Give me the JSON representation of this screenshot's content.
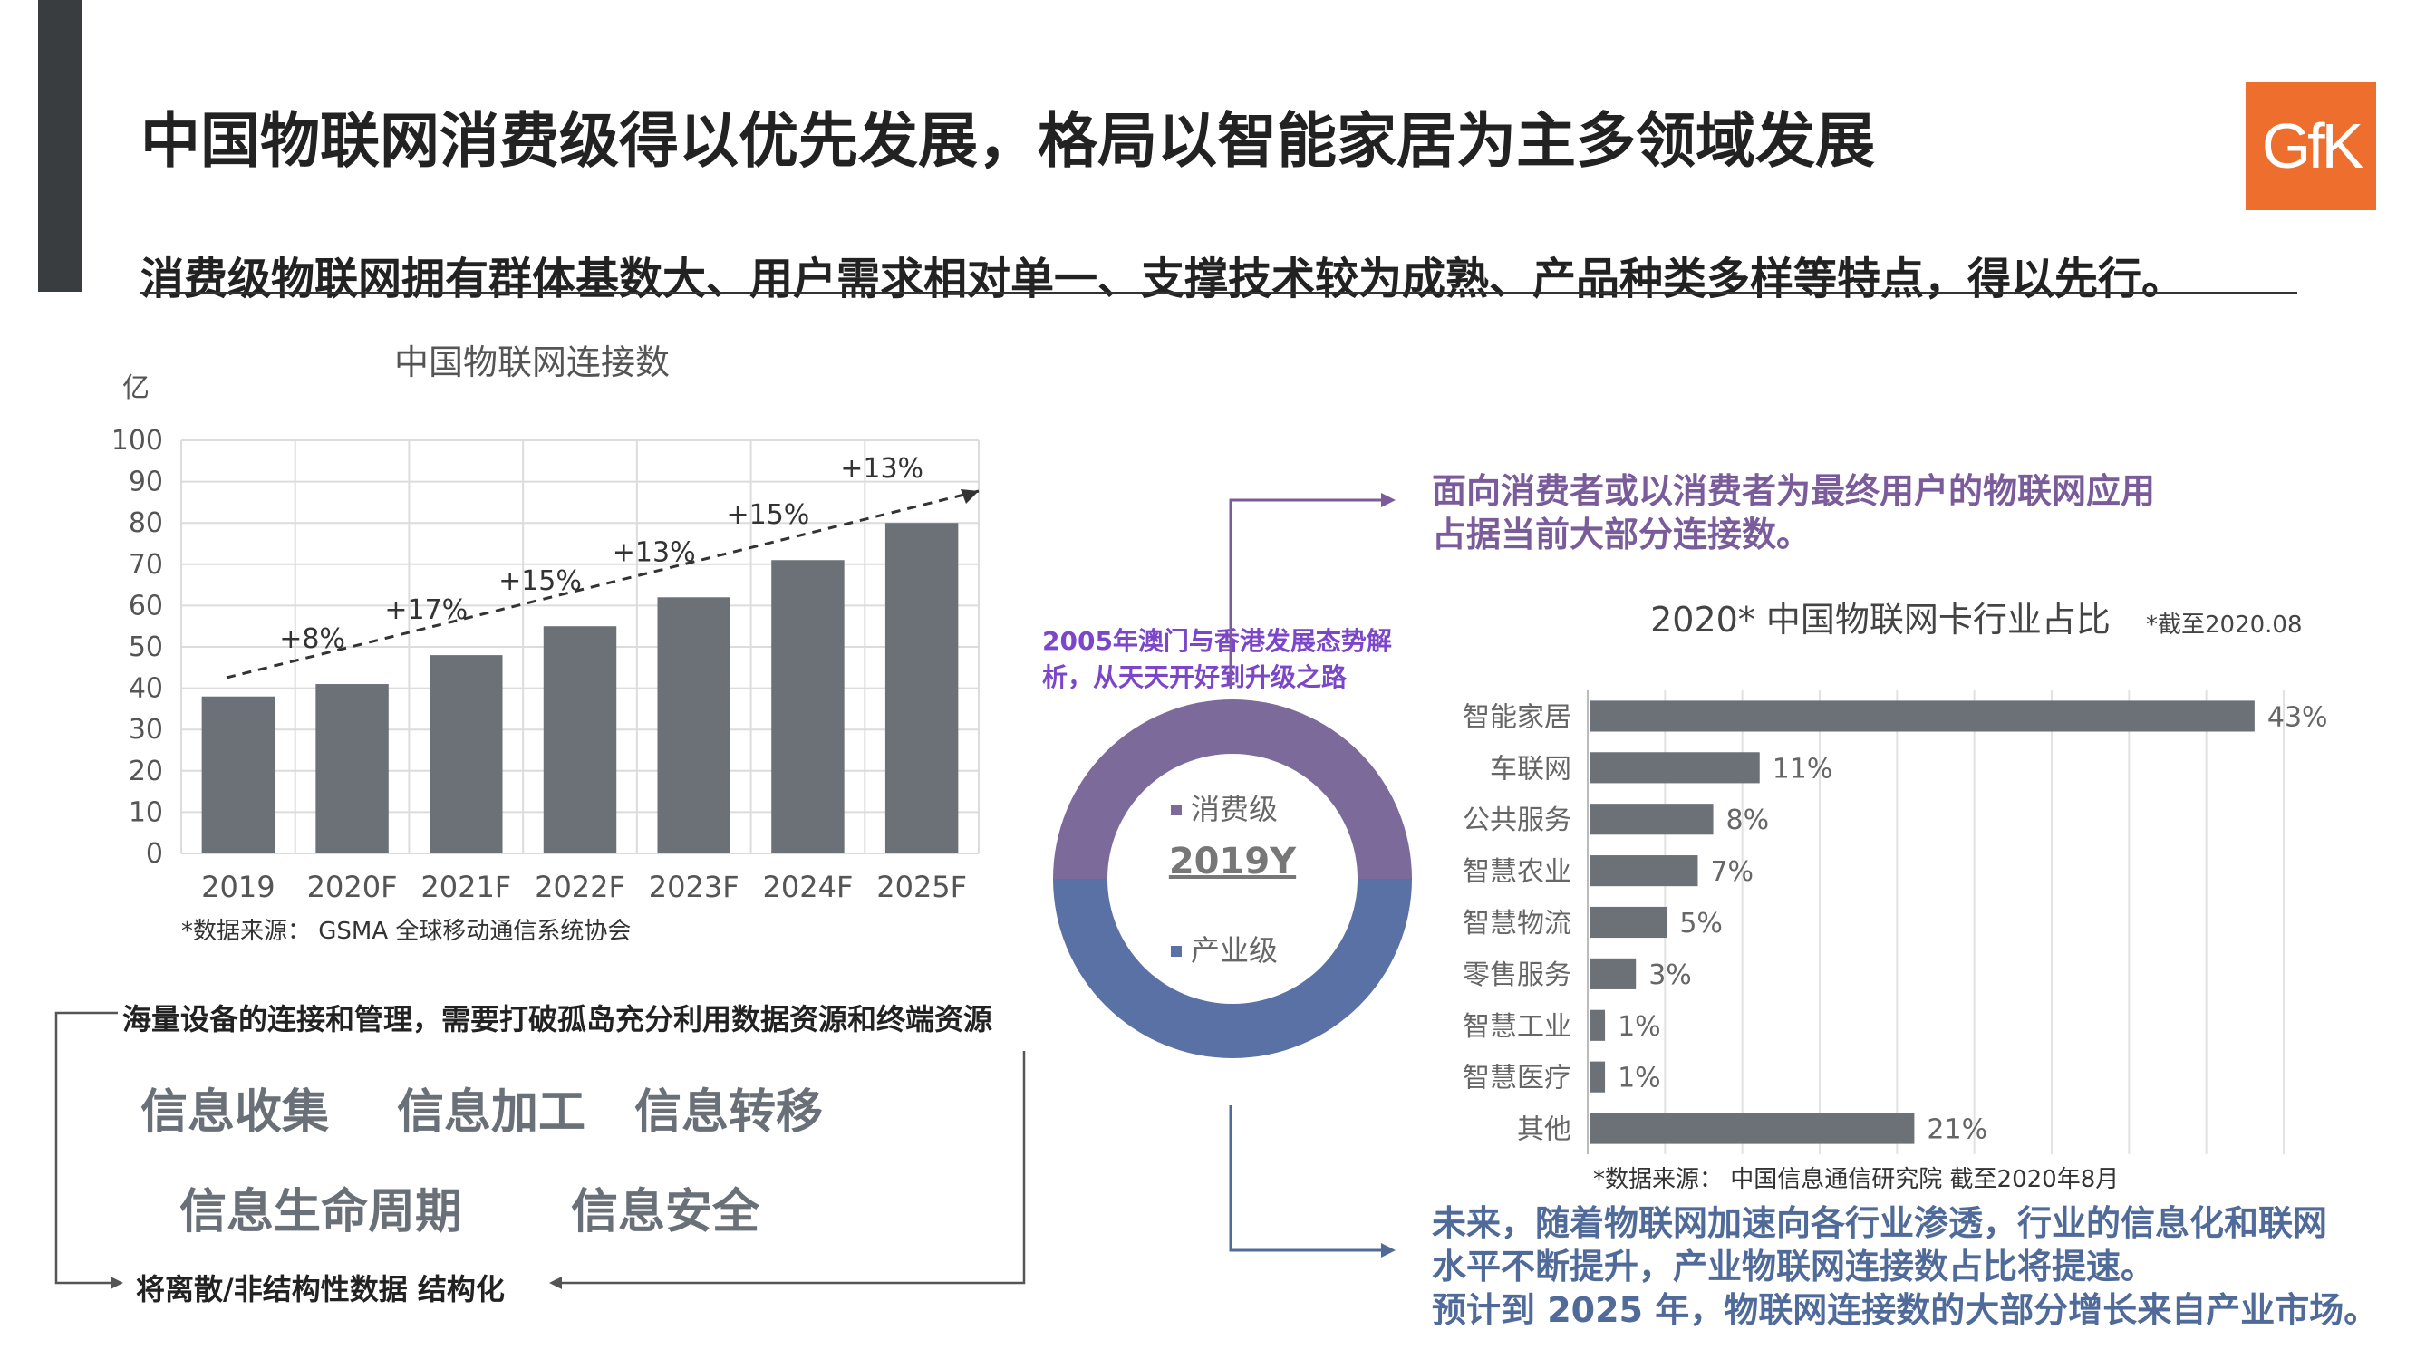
{
  "title": "中国物联网消费级得以优先发展，格局以智能家居为主多领域发展",
  "subtitle": "消费级物联网拥有群体基数大、用户需求相对单一、支撑技术较为成熟、产品种类多样等特点，得以先行。",
  "logo_text": "GfK",
  "colors": {
    "accent_bar": "#3a3d40",
    "logo_bg": "#ee6f2d",
    "bar": "#6b7176",
    "purple": "#7b5c9a",
    "blue": "#506b99"
  },
  "left_chart_source": "*数据来源： GSMA 全球移动通信系统协会",
  "right_chart_source": "*数据来源： 中国信息通信研究院 截至2020年8月",
  "donut": {
    "center_label": "2019Y",
    "legend": [
      "消费级",
      "产业级"
    ]
  },
  "overlay_caption": "2005年澳门与香港发展态势解析，从天天开好到升级之路",
  "top_right_text": [
    "面向消费者或以消费者为最终用户的物联网应用",
    "占据当前大部分连接数。"
  ],
  "bottom_right_text": [
    "未来，随着物联网加速向各行业渗透，行业的信息化和联网",
    "水平不断提升，产业物联网连接数占比将提速。",
    "预计到 2025 年，物联网连接数的大部分增长来自产业市场。"
  ],
  "bottom_left": {
    "header": "海量设备的连接和管理，需要打破孤岛充分利用数据资源和终端资源",
    "row1": [
      "信息收集",
      "信息加工",
      "信息转移"
    ],
    "row2": [
      "信息生命周期",
      "信息安全"
    ],
    "footer": "将离散/非结构性数据 结构化"
  },
  "chart_data": [
    {
      "type": "bar",
      "title": "中国物联网连接数",
      "ylabel": "亿",
      "categories": [
        "2019",
        "2020F",
        "2021F",
        "2022F",
        "2023F",
        "2024F",
        "2025F"
      ],
      "values": [
        38,
        41,
        48,
        55,
        62,
        71,
        80
      ],
      "growth_labels": [
        "+8%",
        "+17%",
        "+15%",
        "+13%",
        "+15%",
        "+13%"
      ],
      "ylim": [
        0,
        100
      ],
      "yticks": [
        0,
        10,
        20,
        30,
        40,
        50,
        60,
        70,
        80,
        90,
        100
      ],
      "grid": true
    },
    {
      "type": "bar",
      "orientation": "horizontal",
      "title": "2020* 中国物联网卡行业占比",
      "note": "*截至2020.08",
      "categories": [
        "智能家居",
        "车联网",
        "公共服务",
        "智慧农业",
        "智慧物流",
        "零售服务",
        "智慧工业",
        "智慧医疗",
        "其他"
      ],
      "values": [
        43,
        11,
        8,
        7,
        5,
        3,
        1,
        1,
        21
      ],
      "value_labels": [
        "43%",
        "11%",
        "8%",
        "7%",
        "5%",
        "3%",
        "1%",
        "1%",
        "21%"
      ],
      "xlim": [
        0,
        45
      ],
      "grid": true
    }
  ]
}
